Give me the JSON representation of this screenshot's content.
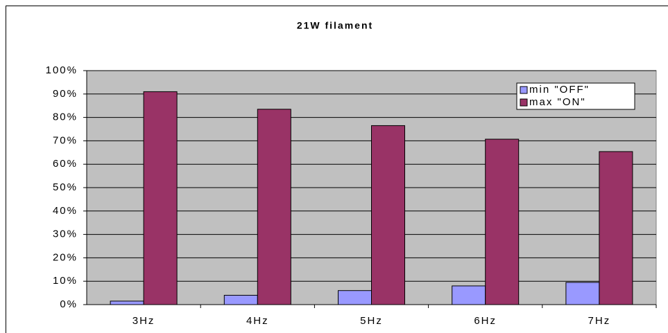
{
  "chart_data": {
    "type": "bar",
    "title": "21W filament",
    "categories": [
      "3Hz",
      "4Hz",
      "5Hz",
      "6Hz",
      "7Hz"
    ],
    "series": [
      {
        "name": "min \"OFF\"",
        "color": "#9999ff",
        "values": [
          1.5,
          4,
          6,
          8,
          9.5
        ]
      },
      {
        "name": "max \"ON\"",
        "color": "#993366",
        "values": [
          91,
          83.5,
          76.5,
          70.7,
          65.4
        ]
      }
    ],
    "ylim": [
      0,
      100
    ],
    "yticks": [
      {
        "value": 0,
        "label": "0%"
      },
      {
        "value": 10,
        "label": "10%"
      },
      {
        "value": 20,
        "label": "20%"
      },
      {
        "value": 30,
        "label": "30%"
      },
      {
        "value": 40,
        "label": "40%"
      },
      {
        "value": 50,
        "label": "50%"
      },
      {
        "value": 60,
        "label": "60%"
      },
      {
        "value": 70,
        "label": "70%"
      },
      {
        "value": 80,
        "label": "80%"
      },
      {
        "value": 90,
        "label": "90%"
      },
      {
        "value": 100,
        "label": "100%"
      }
    ],
    "grid": true,
    "legend": "upper right"
  }
}
